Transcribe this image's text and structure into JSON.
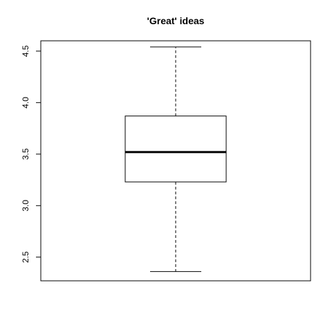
{
  "chart_data": {
    "type": "box",
    "title": "'Great' ideas",
    "xlabel": "",
    "ylabel": "",
    "ylim": [
      2.27,
      4.6
    ],
    "yticks": [
      2.5,
      3.0,
      3.5,
      4.0,
      4.5
    ],
    "ytick_labels": [
      "2.5",
      "3.0",
      "3.5",
      "4.0",
      "4.5"
    ],
    "grid": false,
    "boxes": [
      {
        "min": 2.36,
        "q1": 3.23,
        "median": 3.52,
        "q3": 3.87,
        "max": 4.54
      }
    ],
    "colors": {
      "stroke": "#000000",
      "background": "#ffffff"
    }
  }
}
